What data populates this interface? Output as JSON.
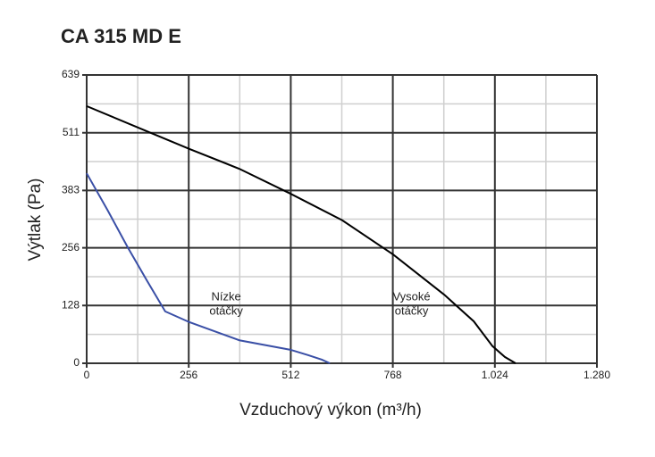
{
  "chart_data": {
    "type": "line",
    "title": "CA 315 MD E",
    "x_label": "Vzduchový výkon (m³/h)",
    "y_label": "Výtlak (Pa)",
    "xlim": [
      0,
      1280
    ],
    "ylim": [
      0,
      639
    ],
    "xticks": [
      0,
      256,
      512,
      768,
      {
        "value": 1024,
        "label": "1.024"
      },
      {
        "value": 1280,
        "label": "1.280"
      }
    ],
    "yticks": [
      0,
      128,
      256,
      383,
      511,
      639
    ],
    "grid": true,
    "series": [
      {
        "color": "#000000",
        "x": [
          0,
          141,
          258,
          383,
          511,
          641,
          769,
          897,
          971,
          1018,
          1049,
          1076
        ],
        "values": [
          570,
          518,
          475,
          431,
          376,
          317,
          241,
          152,
          93,
          38,
          14,
          0
        ]
      },
      {
        "color": "#3a4fa6",
        "x": [
          0,
          52,
          103,
          152,
          197,
          258,
          383,
          511,
          556,
          590,
          610
        ],
        "values": [
          421,
          340,
          257,
          182,
          115,
          91,
          51,
          30,
          18,
          8,
          0
        ]
      }
    ],
    "annotations": [
      {
        "lines": [
          "Nízke",
          "otáčky"
        ],
        "x": 350,
        "y": 128
      },
      {
        "lines": [
          "Vysoké",
          "otáčky"
        ],
        "x": 815,
        "y": 128
      }
    ]
  }
}
